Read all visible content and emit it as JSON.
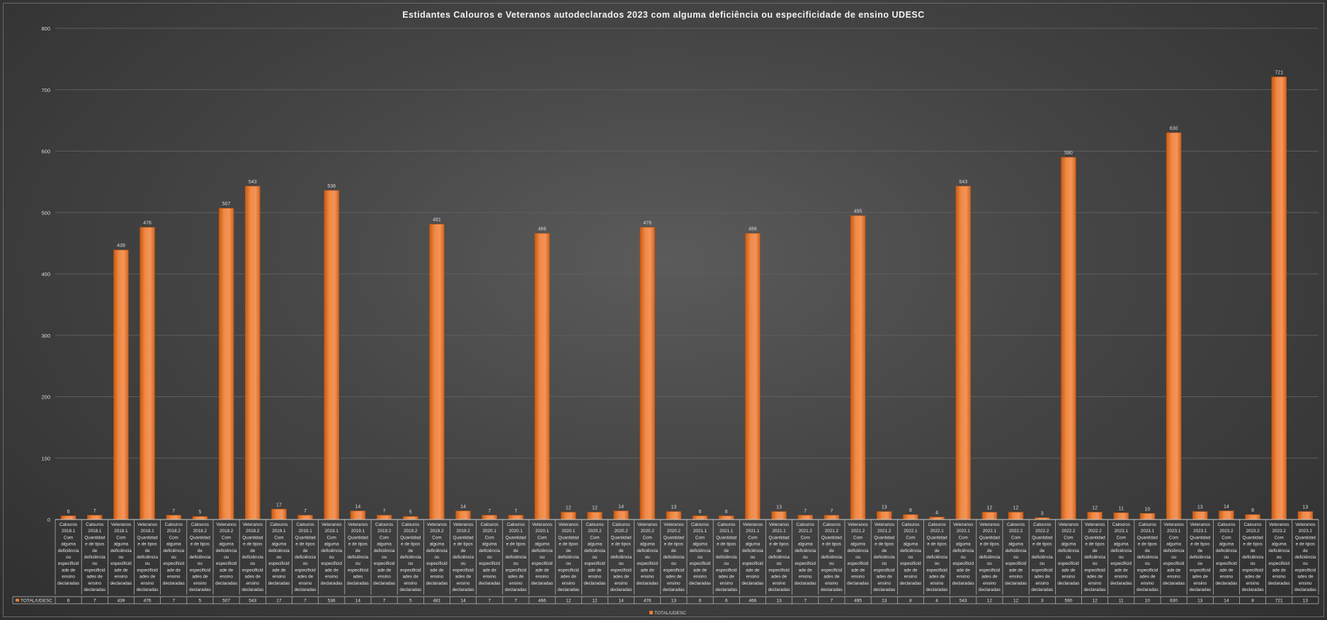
{
  "chart_data": {
    "type": "bar",
    "title": "Estidantes Calouros e Veteranos autodeclarados 2023 com alguma deficiência ou especificidade de ensino UDESC",
    "xlabel": "",
    "ylabel": "",
    "ylim": [
      0,
      800
    ],
    "yticks": [
      "0",
      "100",
      "200",
      "300",
      "400",
      "500",
      "600",
      "700",
      "800"
    ],
    "grid": true,
    "legend": "bottom",
    "bar_color": "#ED7D31",
    "series": [
      {
        "name": "TOTAL/UDESC",
        "values": [
          6,
          7,
          439,
          476,
          7,
          5,
          507,
          543,
          17,
          7,
          536,
          14,
          7,
          5,
          481,
          14,
          7,
          7,
          466,
          12,
          12,
          14,
          476,
          13,
          6,
          6,
          466,
          13,
          7,
          7,
          495,
          13,
          8,
          4,
          543,
          12,
          12,
          3,
          590,
          12,
          11,
          10,
          630,
          13,
          14,
          8,
          721,
          13
        ],
        "labels": [
          "6",
          "7",
          "439",
          "476",
          "7",
          "5",
          "507",
          "543",
          "17",
          "7",
          "536",
          "14",
          "7",
          "5",
          "481",
          "14",
          "7",
          "7",
          "466",
          "12",
          "12",
          "14",
          "476",
          "13",
          "6",
          "6",
          "466",
          "13",
          "7",
          "7",
          "495",
          "13",
          "8",
          "4",
          "543",
          "12",
          "12",
          "3",
          "590",
          "12",
          "11",
          "10",
          "630",
          "13",
          "14",
          "8",
          "721",
          "13"
        ]
      }
    ],
    "categories": [
      [
        "Calouros",
        "2018.1",
        "Com",
        "alguma",
        "deficiência",
        "ou",
        "especificid",
        "ade de",
        "ensino",
        "declaradas"
      ],
      [
        "Calouros",
        "2018.1",
        "Quantidad",
        "e de tipos",
        "de",
        "deficiência",
        "ou",
        "especificid",
        "ades de",
        "ensino",
        "declaradas"
      ],
      [
        "Veteranos",
        "2018.1",
        "Com",
        "alguma",
        "deficiência",
        "ou",
        "especificid",
        "ade de",
        "ensino",
        "declaradas"
      ],
      [
        "Veteranos",
        "2018.1",
        "Quantidad",
        "e de tipos",
        "de",
        "deficiência",
        "ou",
        "especificid",
        "ades de",
        "ensino",
        "declaradas"
      ],
      [
        "Calouros",
        "2018.2",
        "Com",
        "alguma",
        "deficiência",
        "ou",
        "especificid",
        "ade de",
        "ensino",
        "declaradas"
      ],
      [
        "Calouros",
        "2018.2",
        "Quantidad",
        "e de tipos",
        "de",
        "deficiência",
        "ou",
        "especificid",
        "ades de",
        "ensino",
        "declaradas"
      ],
      [
        "Veteranos",
        "2018.2",
        "Com",
        "alguma",
        "deficiência",
        "ou",
        "especificid",
        "ade de",
        "ensino",
        "declaradas"
      ],
      [
        "Veteranos",
        "2018.2",
        "Quantidad",
        "e de tipos",
        "de",
        "deficiência",
        "ou",
        "especificid",
        "ades de",
        "ensino",
        "declaradas"
      ],
      [
        "Calouros",
        "2019.1",
        "Com",
        "alguma",
        "deficiência",
        "ou",
        "especificid",
        "ade de",
        "ensino",
        "declaradas"
      ],
      [
        "Calouros",
        "2019.1",
        "Quantidad",
        "e de tipos",
        "de",
        "deficiência",
        "ou",
        "especificid",
        "ades de",
        "ensino",
        "declaradas"
      ],
      [
        "Veteranos",
        "2019.1",
        "Com",
        "alguma",
        "deficiência",
        "ou",
        "especificid",
        "ade de",
        "ensino",
        "declaradas"
      ],
      [
        "Veteranos",
        "2019.1",
        "Quantidad",
        "e de tipos",
        "de",
        "deficiência",
        "ou",
        "especificid",
        "ades",
        "declaradas"
      ],
      [
        "Calouros",
        "2019.2",
        "Com",
        "alguma",
        "deficiência",
        "ou",
        "especificid",
        "ade de",
        "ensino",
        "declaradas"
      ],
      [
        "Calouros",
        "2019.2",
        "Quantidad",
        "e de tipos",
        "de",
        "deficiência",
        "ou",
        "especificid",
        "ades de",
        "ensino",
        "declaradas"
      ],
      [
        "Veteranos",
        "2019.2",
        "Com",
        "alguma",
        "deficiência",
        "ou",
        "especificid",
        "ade de",
        "ensino",
        "declaradas"
      ],
      [
        "Veteranos",
        "2019.2",
        "Quantidad",
        "e de tipos",
        "de",
        "deficiência",
        "ou",
        "especificid",
        "ades de",
        "ensino",
        "declaradas"
      ],
      [
        "Calouros",
        "2020.1",
        "Com",
        "alguma",
        "deficiência",
        "ou",
        "especificid",
        "ade de",
        "ensino",
        "declaradas"
      ],
      [
        "Calouros",
        "2020.1",
        "Quantidad",
        "e de tipos",
        "de",
        "deficiência",
        "ou",
        "especificid",
        "ades de",
        "ensino",
        "declaradas"
      ],
      [
        "Veteranos",
        "2020.1",
        "Com",
        "alguma",
        "deficiência",
        "ou",
        "especificid",
        "ade de",
        "ensino",
        "declaradas"
      ],
      [
        "Veteranos",
        "2020.1",
        "Quantidad",
        "e de tipos",
        "de",
        "deficiência",
        "ou",
        "especificid",
        "ades de",
        "ensino",
        "declaradas"
      ],
      [
        "Calouros",
        "2020.2",
        "Com",
        "alguma",
        "deficiência",
        "ou",
        "especificid",
        "ade de",
        "ensino",
        "declaradas"
      ],
      [
        "Calouros",
        "2020.2",
        "Quantidad",
        "e de tipos",
        "de",
        "deficiência",
        "ou",
        "especificid",
        "ades de",
        "ensino",
        "declaradas"
      ],
      [
        "Veteranos",
        "2020.2",
        "Com",
        "alguma",
        "deficiência",
        "ou",
        "especificid",
        "ade de",
        "ensino",
        "declaradas"
      ],
      [
        "Veteranos",
        "2020.2",
        "Quantidad",
        "e de tipos",
        "de",
        "deficiência",
        "ou",
        "especificid",
        "ades de",
        "ensino",
        "declaradas"
      ],
      [
        "Calouros",
        "2021.1",
        "Com",
        "alguma",
        "deficiência",
        "ou",
        "especificid",
        "ade de",
        "ensino",
        "declaradas"
      ],
      [
        "Calouros",
        "2021.1",
        "Quantidad",
        "e de tipos",
        "de",
        "deficiência",
        "ou",
        "especificid",
        "ades de",
        "ensino",
        "declaradas"
      ],
      [
        "Veteranos",
        "2021.1",
        "Com",
        "alguma",
        "deficiência",
        "ou",
        "especificid",
        "ade de",
        "ensino",
        "declaradas"
      ],
      [
        "Veteranos",
        "2021.1",
        "Quantidad",
        "e de tipos",
        "de",
        "deficiência",
        "ou",
        "especificid",
        "ades de",
        "ensino",
        "declaradas"
      ],
      [
        "Calouros",
        "2021.2",
        "Com",
        "alguma",
        "deficiência",
        "ou",
        "especificid",
        "ade de",
        "ensino",
        "declaradas"
      ],
      [
        "Calouros",
        "2021.2",
        "Quantidad",
        "e de tipos",
        "de",
        "deficiência",
        "ou",
        "especificid",
        "ades de",
        "ensino",
        "declaradas"
      ],
      [
        "Veteranos",
        "2021.2",
        "Com",
        "alguma",
        "deficiência",
        "ou",
        "especificid",
        "ade de",
        "ensino",
        "declaradas"
      ],
      [
        "Veteranos",
        "2021.2",
        "Quantidad",
        "e de tipos",
        "de",
        "deficiência",
        "ou",
        "especificid",
        "ades de",
        "ensino",
        "declaradas"
      ],
      [
        "Calouros",
        "2022.1",
        "Com",
        "alguma",
        "deficiência",
        "ou",
        "especificid",
        "ade de",
        "ensino",
        "declaradas"
      ],
      [
        "Calouros",
        "2022.1",
        "Quantidad",
        "e de tipos",
        "de",
        "deficiência",
        "ou",
        "especificid",
        "ades de",
        "ensino",
        "declaradas"
      ],
      [
        "Veteranos",
        "2022.1",
        "Com",
        "alguma",
        "deficiência",
        "ou",
        "especificid",
        "ade de",
        "ensino",
        "declaradas"
      ],
      [
        "Veteranos",
        "2022.1",
        "Quantidad",
        "e de tipos",
        "de",
        "deficiência",
        "ou",
        "especificid",
        "ades de",
        "ensino",
        "declaradas"
      ],
      [
        "Calouros",
        "2022.2",
        "Com",
        "alguma",
        "deficiência",
        "ou",
        "especificid",
        "ade de",
        "ensino",
        "declaradas"
      ],
      [
        "Calouros",
        "2022.2",
        "Quantidad",
        "e de tipos",
        "de",
        "deficiência",
        "ou",
        "especificid",
        "ades de",
        "ensino",
        "declaradas"
      ],
      [
        "Veteranos",
        "2022.2",
        "Com",
        "alguma",
        "deficiência",
        "ou",
        "especificid",
        "ade de",
        "ensino",
        "declaradas"
      ],
      [
        "Veteranos",
        "2022.2",
        "Quantidad",
        "e de tipos",
        "de",
        "deficiência",
        "ou",
        "especificid",
        "ades de",
        "ensino",
        "declaradas"
      ],
      [
        "Calouros",
        "2023.1",
        "Com",
        "alguma",
        "deficiência",
        "ou",
        "especificid",
        "ade de",
        "ensino",
        "declaradas"
      ],
      [
        "Calouros",
        "2023.1",
        "Quantidad",
        "e de tipos",
        "de",
        "deficiência",
        "ou",
        "especificid",
        "ades de",
        "ensino",
        "declaradas"
      ],
      [
        "Veteranos",
        "2023.1",
        "Com",
        "alguma",
        "deficiência",
        "ou",
        "especificid",
        "ade de",
        "ensino",
        "declaradas"
      ],
      [
        "Veteranos",
        "2023.1",
        "Quantidad",
        "e de tipos",
        "de",
        "deficiência",
        "ou",
        "especificid",
        "ades de",
        "ensino",
        "declaradas"
      ],
      [
        "Calouros",
        "2023.2",
        "Com",
        "alguma",
        "deficiência",
        "ou",
        "especificid",
        "ade de",
        "ensino",
        "declaradas"
      ],
      [
        "Calouros",
        "2023.2",
        "Quantidad",
        "e de tipos",
        "de",
        "deficiência",
        "ou",
        "especificid",
        "ades de",
        "ensino",
        "declaradas"
      ],
      [
        "Veteranos",
        "2023.2",
        "Com",
        "alguma",
        "deficiência",
        "ou",
        "especificid",
        "ade de",
        "ensino",
        "declaradas"
      ],
      [
        "Veteranos",
        "2023.2",
        "Quantidad",
        "e de tipos",
        "de",
        "deficiência",
        "ou",
        "especificid",
        "ades de",
        "ensino",
        "declaradas"
      ]
    ]
  }
}
